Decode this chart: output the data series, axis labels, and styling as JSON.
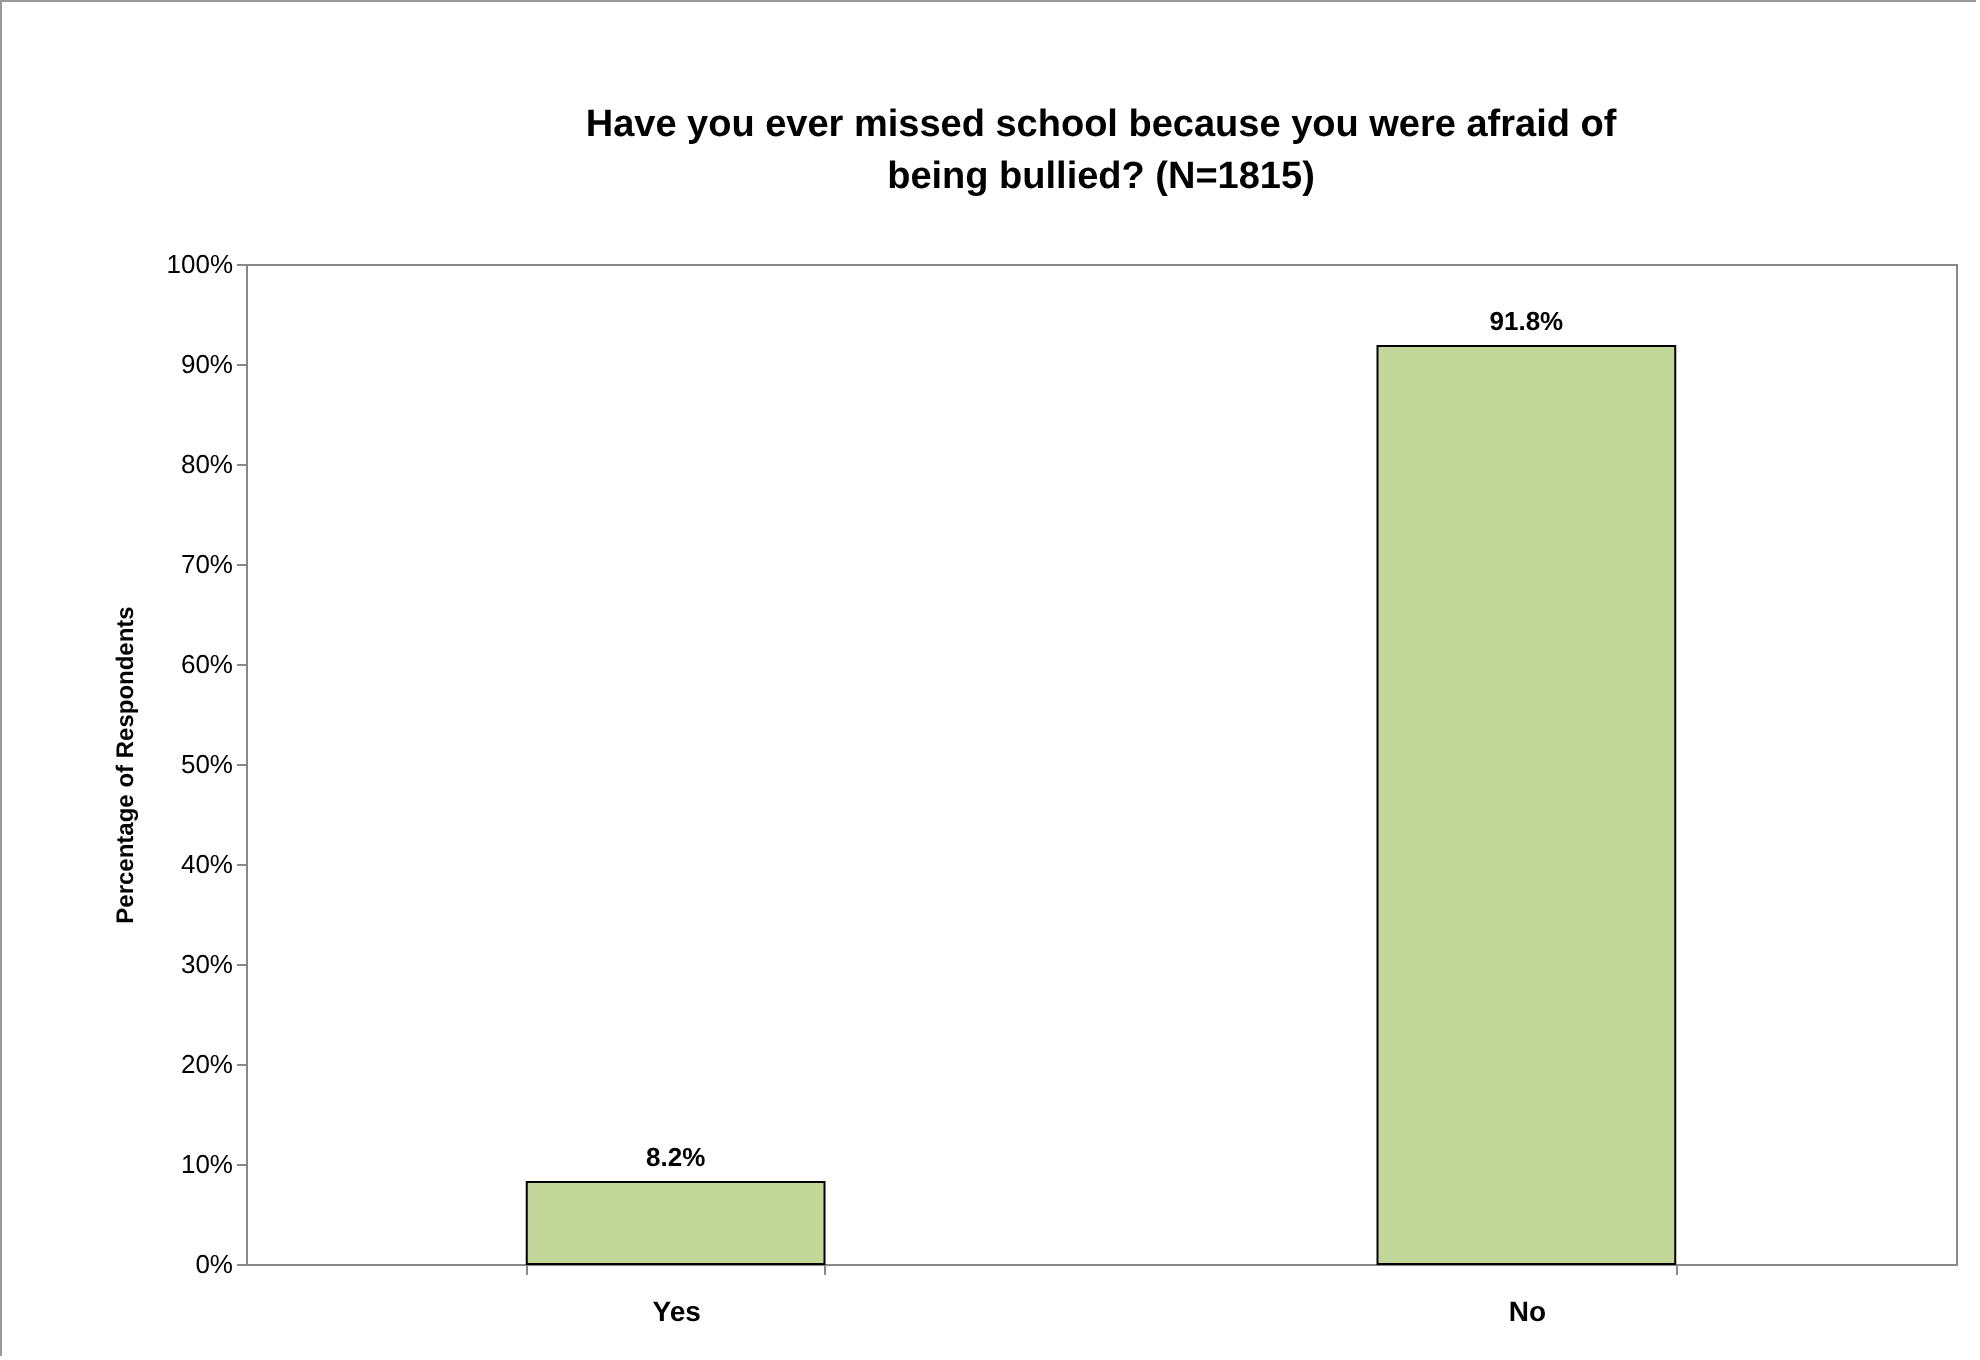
{
  "chart_data": {
    "type": "bar",
    "title": "Have you ever missed school because you were afraid of being bullied?  (N=1815)",
    "ylabel": "Percentage of Respondents",
    "categories": [
      "Yes",
      "No"
    ],
    "values": [
      8.2,
      91.8
    ],
    "color": "#c4d79b",
    "value_labels": [
      "8.2%",
      "91.8%"
    ],
    "ylim": [
      0,
      100
    ],
    "yticks": [
      {
        "value": 0,
        "label": "0%"
      },
      {
        "value": 10,
        "label": "10%"
      },
      {
        "value": 20,
        "label": "20%"
      },
      {
        "value": 30,
        "label": "30%"
      },
      {
        "value": 40,
        "label": "40%"
      },
      {
        "value": 50,
        "label": "50%"
      },
      {
        "value": 60,
        "label": "60%"
      },
      {
        "value": 70,
        "label": "70%"
      },
      {
        "value": 80,
        "label": "80%"
      },
      {
        "value": 90,
        "label": "90%"
      },
      {
        "value": 100,
        "label": "100%"
      }
    ],
    "grid": false
  }
}
